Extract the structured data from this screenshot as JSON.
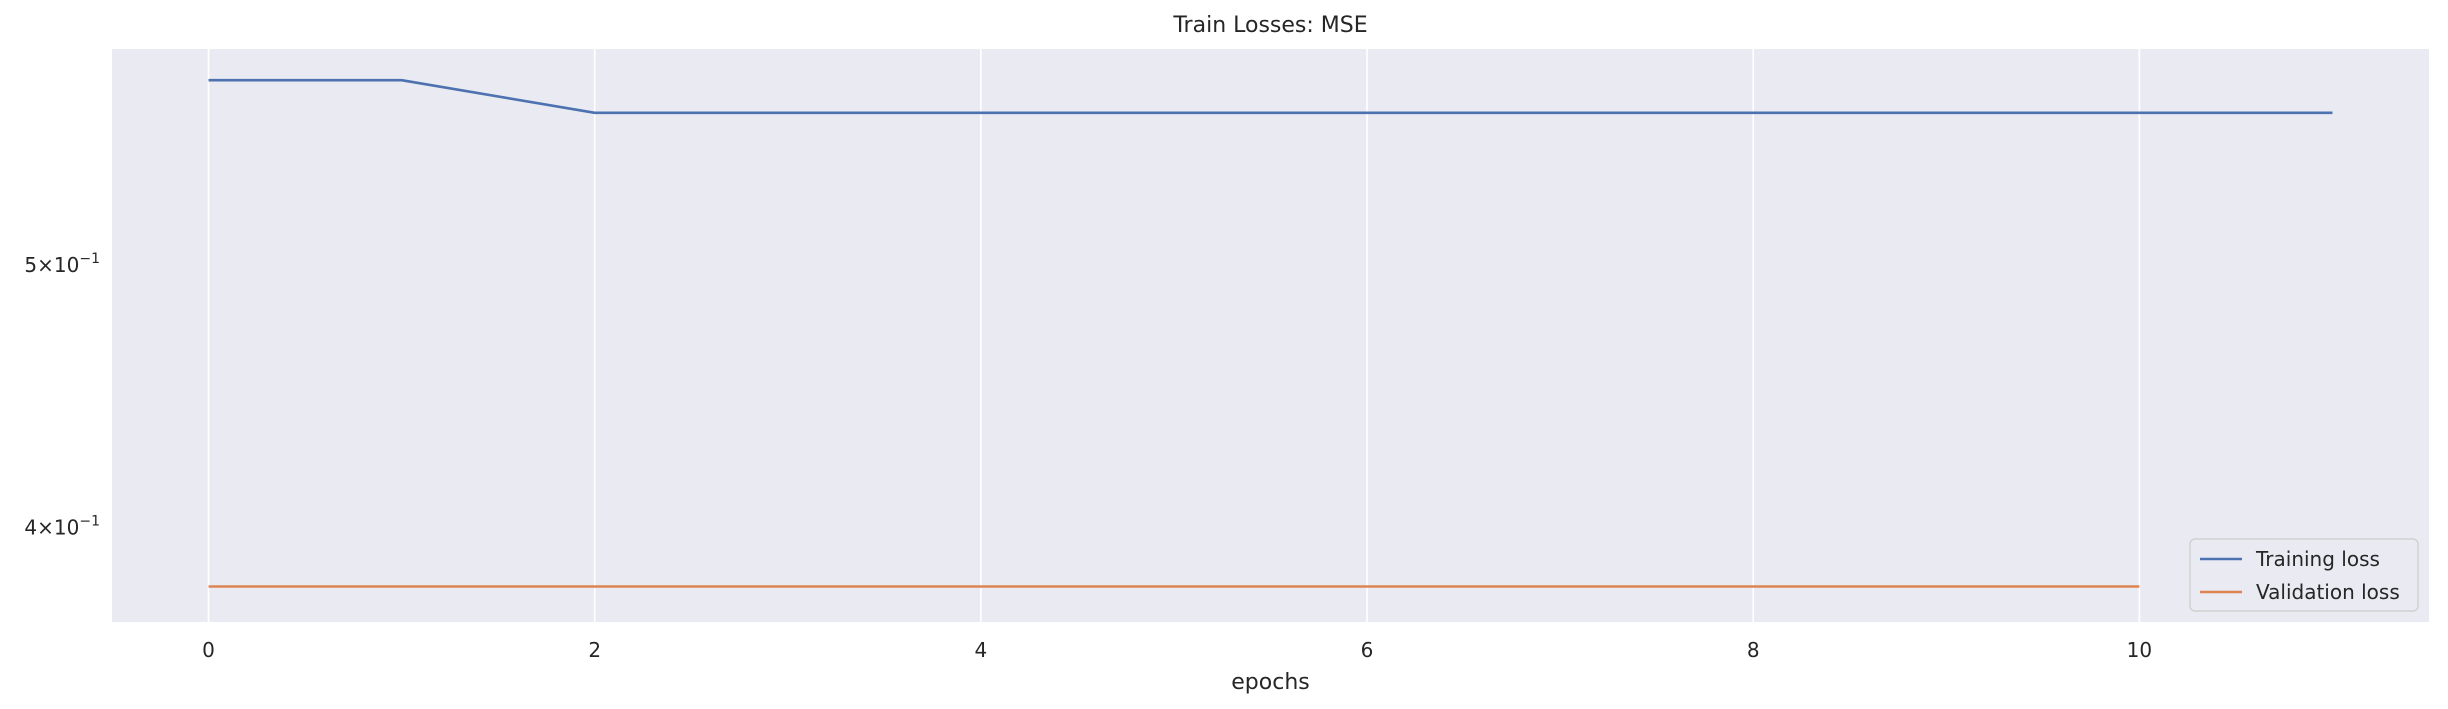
{
  "chart_data": {
    "type": "line",
    "title": "Train Losses:  MSE",
    "xlabel": "epochs",
    "ylabel": "",
    "x_scale": "linear",
    "y_scale": "log",
    "xlim": [
      -0.5,
      11.5
    ],
    "ylim": [
      0.3692,
      0.6007
    ],
    "x_ticks": [
      0,
      2,
      4,
      6,
      8,
      10
    ],
    "y_ticks": [
      {
        "value": 0.5,
        "mantissa": "5",
        "base": "10",
        "exponent": "−1"
      },
      {
        "value": 0.4,
        "mantissa": "4",
        "base": "10",
        "exponent": "−1"
      }
    ],
    "grid": true,
    "legend_position": "lower-right",
    "series": [
      {
        "name": "Training loss",
        "color": "#4c72b0",
        "x": [
          0,
          1,
          2,
          3,
          4,
          5,
          6,
          7,
          8,
          9,
          10,
          11
        ],
        "values": [
          0.585,
          0.585,
          0.569,
          0.569,
          0.569,
          0.569,
          0.569,
          0.569,
          0.569,
          0.569,
          0.569,
          0.569
        ]
      },
      {
        "name": "Validation loss",
        "color": "#dd8452",
        "x": [
          0,
          1,
          2,
          3,
          4,
          5,
          6,
          7,
          8,
          9,
          10
        ],
        "values": [
          0.3805,
          0.3805,
          0.3805,
          0.3805,
          0.3805,
          0.3805,
          0.3805,
          0.3805,
          0.3805,
          0.3805,
          0.3805
        ]
      }
    ],
    "colors": {
      "plot_background": "#eaeaf2",
      "grid": "#ffffff",
      "text": "#262626"
    }
  }
}
